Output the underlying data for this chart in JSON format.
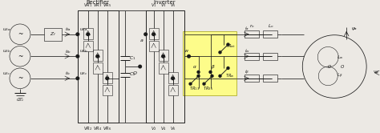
{
  "bg_color": "#ece9e4",
  "fig_width": 4.74,
  "fig_height": 1.66,
  "dpi": 100,
  "black": "#1a1a1a",
  "yellow": "#FFFF80",
  "lw": 0.55
}
